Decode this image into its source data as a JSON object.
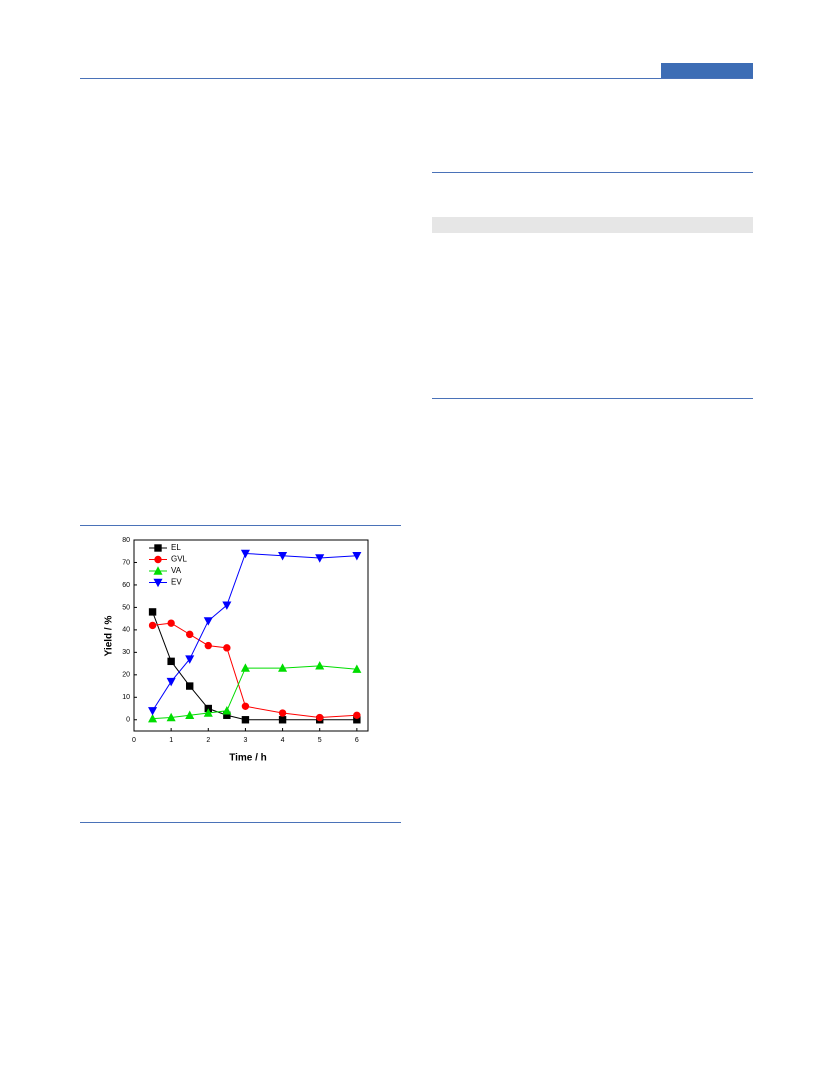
{
  "chart_data": {
    "type": "line",
    "xlabel": "Time / h",
    "ylabel": "Yield / %",
    "x": [
      0.5,
      1,
      1.5,
      2,
      2.5,
      3,
      4,
      5,
      6
    ],
    "series": [
      {
        "name": "EL",
        "color": "#000000",
        "marker": "square",
        "values": [
          48,
          26,
          15,
          5,
          2,
          0,
          0,
          0,
          0
        ]
      },
      {
        "name": "GVL",
        "color": "#ff0000",
        "marker": "circle",
        "values": [
          42,
          43,
          38,
          33,
          32,
          6,
          3,
          1,
          2
        ]
      },
      {
        "name": "VA",
        "color": "#00dd00",
        "marker": "triangle-up",
        "values": [
          0.5,
          1,
          2,
          3,
          4,
          23,
          23,
          24,
          22.5
        ]
      },
      {
        "name": "EV",
        "color": "#0000ff",
        "marker": "triangle-down",
        "values": [
          4,
          17,
          27,
          44,
          51,
          74,
          73,
          72,
          73
        ]
      }
    ],
    "xlim": [
      0,
      6.3
    ],
    "ylim": [
      -5,
      80
    ],
    "xticks": [
      0,
      1,
      2,
      3,
      4,
      5,
      6
    ],
    "yticks": [
      0,
      10,
      20,
      30,
      40,
      50,
      60,
      70,
      80
    ],
    "legend": "upper-left"
  }
}
